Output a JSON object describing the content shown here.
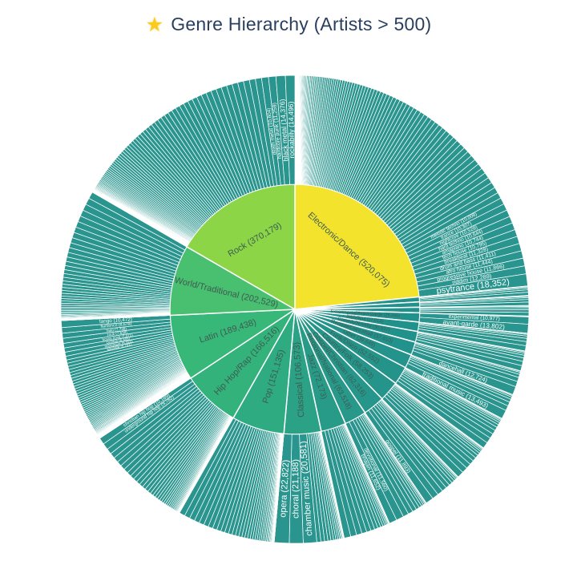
{
  "title": {
    "icon": "glowing-star",
    "icon_glyph": "★",
    "text": "Genre Hierarchy (Artists > 500)",
    "color": "#2a3f5f"
  },
  "chart_data": {
    "type": "sunburst",
    "title": "Genre Hierarchy (Artists > 500)",
    "levels": 2,
    "direction": "clockwise-from-top",
    "ring_split_radius": 156,
    "outer_radius": 292,
    "center": [
      368,
      386
    ],
    "child_color": "#2a958e",
    "parent_label_color": "#3d5c52",
    "child_label_color": "#ffffff",
    "segments": [
      {
        "label": "Electronic/Dance",
        "value": 520075,
        "color": "#f4e32c",
        "unlabeled_slices": 98,
        "children": [
          {
            "label": "melodic techno",
            "value": 10008
          },
          {
            "label": "trance",
            "value": 10307
          },
          {
            "label": "nightcore",
            "value": 10528
          },
          {
            "label": "hard techno",
            "value": 10644
          },
          {
            "label": "amapiano",
            "value": 10744
          },
          {
            "label": "tech house",
            "value": 10795
          },
          {
            "label": "breakbeat",
            "value": 11328
          },
          {
            "label": "drum and bass",
            "value": 11411
          },
          {
            "label": "afro house",
            "value": 11444
          },
          {
            "label": "progressive house",
            "value": 11866
          },
          {
            "label": "riddim",
            "value": 12289
          },
          {
            "label": "psytrance",
            "value": 18352
          }
        ]
      },
      {
        "label": "",
        "value": 14356,
        "color": "#21918c",
        "unlabeled_slices": 6,
        "children": []
      },
      {
        "label": "",
        "value": 15200,
        "color": "#21918c",
        "unlabeled_slices": 6,
        "children": []
      },
      {
        "label": "",
        "value": 16000,
        "color": "#21918c",
        "unlabeled_slices": 6,
        "children": []
      },
      {
        "label": "Experimental/Avant-Garde",
        "value": 26265,
        "color": "#21918c",
        "unlabeled_slices": 2,
        "children": [
          {
            "label": "experimental",
            "value": 10977
          },
          {
            "label": "avant-garde",
            "value": 13802
          }
        ]
      },
      {
        "label": "R&B/Soul",
        "value": 27013,
        "color": "#21918c",
        "unlabeled_slices": 7,
        "children": []
      },
      {
        "label": "Comedy/Novelty",
        "value": 30837,
        "color": "#21918c",
        "unlabeled_slices": 8,
        "children": []
      },
      {
        "label": "Reggae/Dancehall",
        "value": 37810,
        "color": "#22928c",
        "unlabeled_slices": 6,
        "children": [
          {
            "label": "dancehall",
            "value": 12724
          }
        ]
      },
      {
        "label": "Other",
        "value": 39649,
        "color": "#23938c",
        "unlabeled_slices": 7,
        "children": [
          {
            "label": "traditional music",
            "value": 13493
          }
        ]
      },
      {
        "label": "Funk/Disco",
        "value": 52552,
        "color": "#24948b",
        "unlabeled_slices": 12,
        "children": []
      },
      {
        "label": "Country/Folk",
        "value": 58253,
        "color": "#25958b",
        "unlabeled_slices": 13,
        "children": []
      },
      {
        "label": "Gospel/Christian",
        "value": 62316,
        "color": "#26968a",
        "unlabeled_slices": 11,
        "children": [
          {
            "label": "gospel",
            "value": 11893
          }
        ]
      },
      {
        "label": "Regional/National",
        "value": 63518,
        "color": "#279889",
        "unlabeled_slices": 10,
        "children": [
          {
            "label": "devotional",
            "value": 11560
          },
          {
            "label": "bhajan",
            "value": 11652
          }
        ]
      },
      {
        "label": "Jazz",
        "value": 72173,
        "color": "#289b88",
        "unlabeled_slices": 16,
        "children": []
      },
      {
        "label": "Classical",
        "value": 106573,
        "color": "#2ba285",
        "unlabeled_slices": 15,
        "children": [
          {
            "label": "chamber music",
            "value": 20581
          },
          {
            "label": "choral",
            "value": 21188
          },
          {
            "label": "opera",
            "value": 22822
          }
        ]
      },
      {
        "label": "Pop",
        "value": 151135,
        "color": "#2eab81",
        "unlabeled_slices": 40,
        "children": []
      },
      {
        "label": "Hip Hop/Rap",
        "value": 166516,
        "color": "#33b37b",
        "unlabeled_slices": 40,
        "children": [
          {
            "label": "underground hip hop",
            "value": 9782
          },
          {
            "label": "christian hip hop",
            "value": 10189
          }
        ]
      },
      {
        "label": "Latin",
        "value": 189438,
        "color": "#38b878",
        "unlabeled_slices": 60,
        "children": [
          {
            "label": "bachata",
            "value": 5741
          },
          {
            "label": "merengue",
            "value": 6322
          },
          {
            "label": "cumbia",
            "value": 6455
          },
          {
            "label": "bossa nova",
            "value": 7071
          },
          {
            "label": "zouk",
            "value": 7638
          },
          {
            "label": "fado",
            "value": 7738
          },
          {
            "label": "flamenco",
            "value": 8678
          },
          {
            "label": "tango",
            "value": 10472
          }
        ]
      },
      {
        "label": "World/Traditional",
        "value": 202529,
        "color": "#49bf70",
        "unlabeled_slices": 45,
        "children": []
      },
      {
        "label": "Rock",
        "value": 370179,
        "color": "#8bd546",
        "unlabeled_slices": 80,
        "children": [
          {
            "label": "death metal",
            "value": 10604
          },
          {
            "label": "hardcore punk",
            "value": 11259
          },
          {
            "label": "black metal",
            "value": 14376
          },
          {
            "label": "rockabilly",
            "value": 14496
          }
        ]
      }
    ]
  }
}
